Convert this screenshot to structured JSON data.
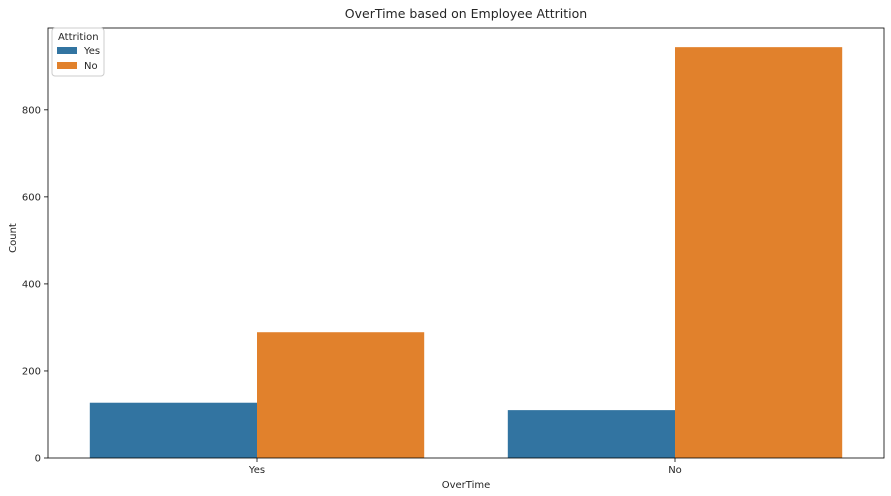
{
  "chart_data": {
    "type": "bar",
    "title": "OverTime based on Employee Attrition",
    "xlabel": "OverTime",
    "ylabel": "Count",
    "categories": [
      "Yes",
      "No"
    ],
    "ylim": [
      0,
      988
    ],
    "yticks": [
      0,
      200,
      400,
      600,
      800
    ],
    "grid": false,
    "legend": {
      "title": "Attrition",
      "position": "top-left"
    },
    "series": [
      {
        "name": "Yes",
        "color": "#3274a1",
        "values": [
          127,
          110
        ]
      },
      {
        "name": "No",
        "color": "#e1812c",
        "values": [
          289,
          944
        ]
      }
    ]
  }
}
